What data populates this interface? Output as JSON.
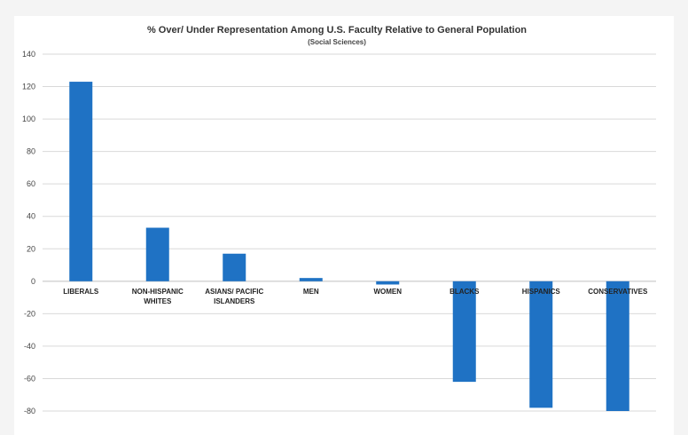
{
  "chart_data": {
    "type": "bar",
    "title": "% Over/ Under Representation Among U.S. Faculty Relative to General Population",
    "subtitle": "(Social Sciences)",
    "xlabel": "",
    "ylabel": "",
    "categories": [
      [
        "LIBERALS"
      ],
      [
        "NON-HISPANIC",
        "WHITES"
      ],
      [
        "ASIANS/ PACIFIC",
        "ISLANDERS"
      ],
      [
        "MEN"
      ],
      [
        "WOMEN"
      ],
      [
        "BLACKS"
      ],
      [
        "HISPANICS"
      ],
      [
        "CONSERVATIVES"
      ]
    ],
    "values": [
      123,
      33,
      17,
      2,
      -2,
      -62,
      -78,
      -80
    ],
    "ylim": [
      -80,
      140
    ],
    "yticks": [
      140,
      120,
      100,
      80,
      60,
      40,
      20,
      0,
      -20,
      -40,
      -60,
      -80
    ],
    "bar_color": "#1f72c4",
    "grid": true,
    "legend": "none"
  }
}
